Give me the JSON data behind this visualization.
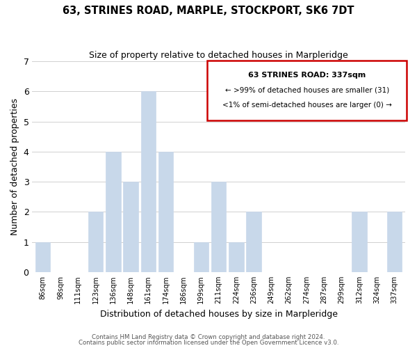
{
  "title": "63, STRINES ROAD, MARPLE, STOCKPORT, SK6 7DT",
  "subtitle": "Size of property relative to detached houses in Marpleridge",
  "xlabel": "Distribution of detached houses by size in Marpleridge",
  "ylabel": "Number of detached properties",
  "bar_labels": [
    "86sqm",
    "98sqm",
    "111sqm",
    "123sqm",
    "136sqm",
    "148sqm",
    "161sqm",
    "174sqm",
    "186sqm",
    "199sqm",
    "211sqm",
    "224sqm",
    "236sqm",
    "249sqm",
    "262sqm",
    "274sqm",
    "287sqm",
    "299sqm",
    "312sqm",
    "324sqm",
    "337sqm"
  ],
  "bar_values": [
    1,
    0,
    0,
    2,
    4,
    3,
    6,
    4,
    0,
    1,
    3,
    1,
    2,
    0,
    0,
    0,
    0,
    0,
    2,
    0,
    2
  ],
  "bar_color": "#c8d8ea",
  "ylim": [
    0,
    7
  ],
  "yticks": [
    0,
    1,
    2,
    3,
    4,
    5,
    6,
    7
  ],
  "legend_box_color": "#cc0000",
  "legend_title": "63 STRINES ROAD: 337sqm",
  "legend_line1": "← >99% of detached houses are smaller (31)",
  "legend_line2": "<1% of semi-detached houses are larger (0) →",
  "footer_line1": "Contains HM Land Registry data © Crown copyright and database right 2024.",
  "footer_line2": "Contains public sector information licensed under the Open Government Licence v3.0.",
  "grid_color": "#d0d0d0",
  "background_color": "#ffffff"
}
